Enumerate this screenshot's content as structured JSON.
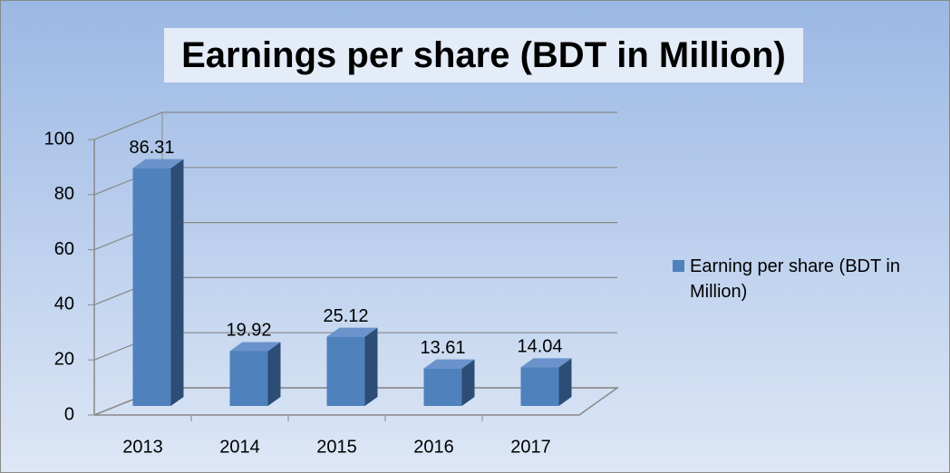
{
  "chart_data": {
    "type": "bar3d",
    "title": "Earnings per share (BDT in Million)",
    "categories": [
      "2013",
      "2014",
      "2015",
      "2016",
      "2017"
    ],
    "series": [
      {
        "name": "Earning per share (BDT in Million)",
        "color": "#4f81bd",
        "values": [
          86.31,
          19.92,
          25.12,
          13.61,
          14.04
        ]
      }
    ],
    "ylim": [
      0,
      100
    ],
    "yticks": [
      0,
      20,
      40,
      60,
      80,
      100
    ],
    "grid": true,
    "legend": "right"
  }
}
